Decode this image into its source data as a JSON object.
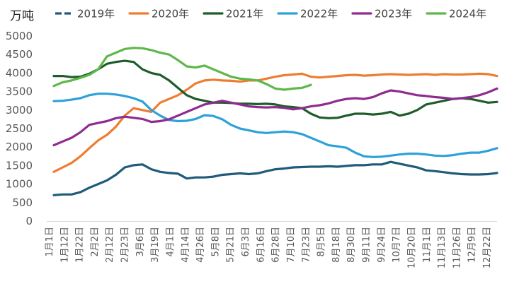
{
  "chart_data": {
    "type": "line",
    "unit_label": "万吨",
    "ylim": [
      0,
      5000
    ],
    "yticks": [
      0,
      500,
      1000,
      1500,
      2000,
      2500,
      3000,
      3500,
      4000,
      4500,
      5000
    ],
    "x_tick_labels": [
      "1月1日",
      "1月12日",
      "1月22日",
      "2月2日",
      "2月12日",
      "2月23日",
      "3月6日",
      "3月19日",
      "4月1日",
      "4月14日",
      "4月26日",
      "5月8日",
      "5月21日",
      "6月3日",
      "6月16日",
      "6月28日",
      "7月10日",
      "7月23日",
      "8月5日",
      "8月18日",
      "8月30日",
      "9月11日",
      "9月24日",
      "10月7日",
      "10月20日",
      "11月1日",
      "11月13日",
      "11月26日",
      "12月9日",
      "12月22日"
    ],
    "legend_position": "top",
    "grid": false,
    "series": [
      {
        "name": "2019年",
        "color": "#1f5b7a",
        "dashed_legend": true,
        "values": [
          700,
          720,
          720,
          780,
          900,
          1000,
          1100,
          1250,
          1450,
          1510,
          1530,
          1400,
          1330,
          1300,
          1280,
          1150,
          1180,
          1180,
          1200,
          1250,
          1270,
          1290,
          1270,
          1290,
          1350,
          1400,
          1420,
          1450,
          1460,
          1470,
          1470,
          1480,
          1470,
          1490,
          1510,
          1510,
          1530,
          1530,
          1600,
          1550,
          1500,
          1450,
          1370,
          1350,
          1320,
          1290,
          1270,
          1260,
          1260,
          1270,
          1300
        ]
      },
      {
        "name": "2020年",
        "color": "#ed7d31",
        "values": [
          1330,
          1450,
          1570,
          1750,
          1970,
          2180,
          2330,
          2550,
          2850,
          3050,
          3000,
          2950,
          3200,
          3300,
          3400,
          3550,
          3720,
          3800,
          3820,
          3800,
          3790,
          3770,
          3800,
          3800,
          3850,
          3900,
          3940,
          3960,
          3980,
          3900,
          3880,
          3900,
          3920,
          3940,
          3950,
          3930,
          3940,
          3960,
          3970,
          3960,
          3950,
          3960,
          3970,
          3950,
          3970,
          3960,
          3960,
          3970,
          3980,
          3970,
          3920
        ]
      },
      {
        "name": "2021年",
        "color": "#1e5d2a",
        "values": [
          3920,
          3920,
          3890,
          3900,
          3980,
          4100,
          4250,
          4300,
          4330,
          4300,
          4100,
          4000,
          3950,
          3800,
          3600,
          3400,
          3300,
          3250,
          3200,
          3200,
          3190,
          3170,
          3170,
          3160,
          3170,
          3150,
          3100,
          3080,
          3050,
          2900,
          2800,
          2780,
          2790,
          2850,
          2900,
          2900,
          2880,
          2900,
          2950,
          2850,
          2900,
          3000,
          3150,
          3200,
          3250,
          3300,
          3320,
          3300,
          3250,
          3200,
          3220
        ]
      },
      {
        "name": "2022年",
        "color": "#2ea1d8",
        "values": [
          3240,
          3250,
          3280,
          3320,
          3400,
          3440,
          3440,
          3420,
          3380,
          3320,
          3230,
          3000,
          2850,
          2730,
          2700,
          2710,
          2760,
          2860,
          2840,
          2750,
          2600,
          2500,
          2450,
          2400,
          2380,
          2400,
          2420,
          2400,
          2350,
          2250,
          2150,
          2050,
          2020,
          1980,
          1850,
          1750,
          1730,
          1740,
          1770,
          1800,
          1820,
          1820,
          1800,
          1770,
          1760,
          1780,
          1820,
          1850,
          1850,
          1900,
          1970
        ]
      },
      {
        "name": "2023年",
        "color": "#8e2c8f",
        "values": [
          2050,
          2150,
          2250,
          2400,
          2600,
          2650,
          2700,
          2780,
          2820,
          2790,
          2760,
          2680,
          2700,
          2750,
          2850,
          2950,
          3050,
          3150,
          3200,
          3250,
          3200,
          3150,
          3100,
          3080,
          3070,
          3080,
          3060,
          3020,
          3050,
          3100,
          3130,
          3180,
          3250,
          3300,
          3320,
          3300,
          3350,
          3450,
          3530,
          3500,
          3450,
          3400,
          3380,
          3350,
          3330,
          3300,
          3320,
          3350,
          3400,
          3480,
          3580
        ]
      },
      {
        "name": "2024年",
        "color": "#5cb84a",
        "values": [
          3650,
          3750,
          3800,
          3870,
          3950,
          4100,
          4450,
          4550,
          4650,
          4680,
          4670,
          4620,
          4550,
          4500,
          4350,
          4180,
          4150,
          4200,
          4100,
          4000,
          3900,
          3850,
          3830,
          3800,
          3700,
          3580,
          3550,
          3580,
          3600,
          3680
        ]
      }
    ]
  }
}
